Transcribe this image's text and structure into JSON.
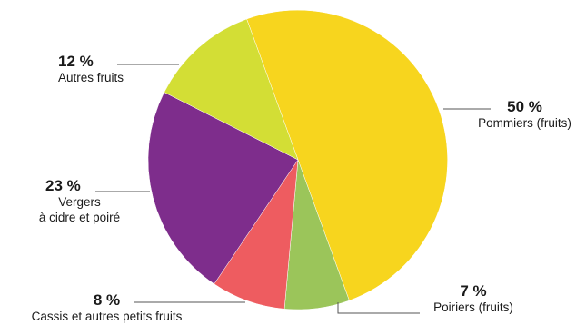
{
  "chart_data": {
    "type": "pie",
    "title": "",
    "slices": [
      {
        "label": "Pommiers (fruits)",
        "value": 50,
        "value_label": "50 %",
        "color": "#f7d51e"
      },
      {
        "label": "Poiriers (fruits)",
        "value": 7,
        "value_label": "7 %",
        "color": "#9bc55a"
      },
      {
        "label": "Cassis et autres petits fruits",
        "value": 8,
        "value_label": "8 %",
        "color": "#ee5c60"
      },
      {
        "label": "Vergers\nà cidre et poiré",
        "value": 23,
        "value_label": "23 %",
        "color": "#7e2d8c"
      },
      {
        "label": "Autres fruits",
        "value": 12,
        "value_label": "12 %",
        "color": "#d3de35"
      }
    ],
    "start_angle_deg": -20,
    "direction": "clockwise",
    "unit": "%",
    "legend": "none (direct labels with leader lines)"
  }
}
